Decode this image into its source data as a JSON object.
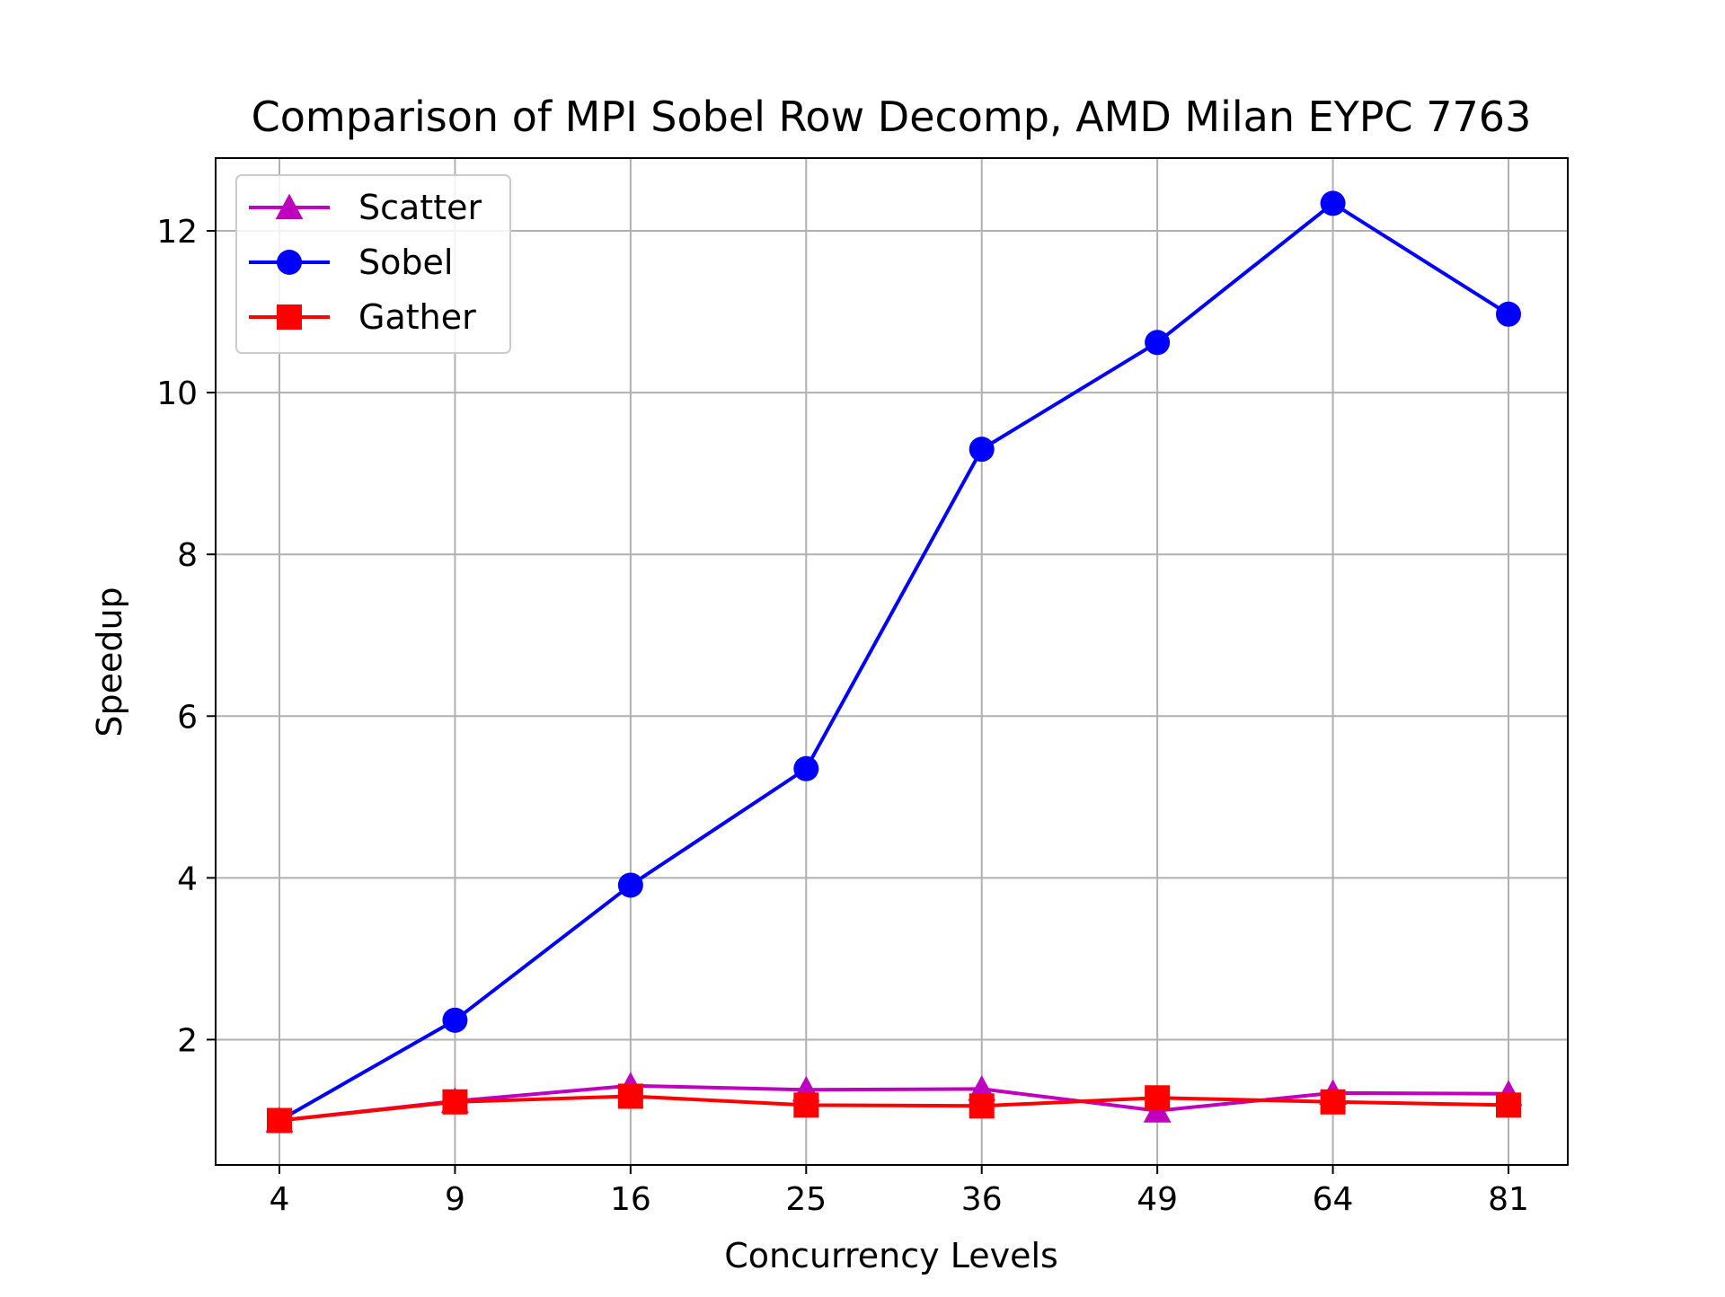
{
  "chart_data": {
    "type": "line",
    "title": "Comparison of MPI Sobel Row Decomp, AMD Milan EYPC 7763",
    "xlabel": "Concurrency Levels",
    "ylabel": "Speedup",
    "categories": [
      "4",
      "9",
      "16",
      "25",
      "36",
      "49",
      "64",
      "81"
    ],
    "ylim": [
      0.45,
      12.9
    ],
    "yticks": [
      2,
      4,
      6,
      8,
      10,
      12
    ],
    "grid": true,
    "legend_position": "upper-left",
    "series": [
      {
        "name": "Scatter",
        "color": "#bf00bf",
        "marker": "triangle",
        "values": [
          1.0,
          1.24,
          1.43,
          1.38,
          1.39,
          1.12,
          1.34,
          1.33
        ]
      },
      {
        "name": "Sobel",
        "color": "#0000ff",
        "marker": "circle",
        "values": [
          1.0,
          2.24,
          3.91,
          5.35,
          9.3,
          10.62,
          12.34,
          10.97
        ]
      },
      {
        "name": "Gather",
        "color": "#ff0000",
        "marker": "square",
        "values": [
          1.0,
          1.23,
          1.3,
          1.19,
          1.18,
          1.28,
          1.23,
          1.19
        ]
      }
    ]
  }
}
